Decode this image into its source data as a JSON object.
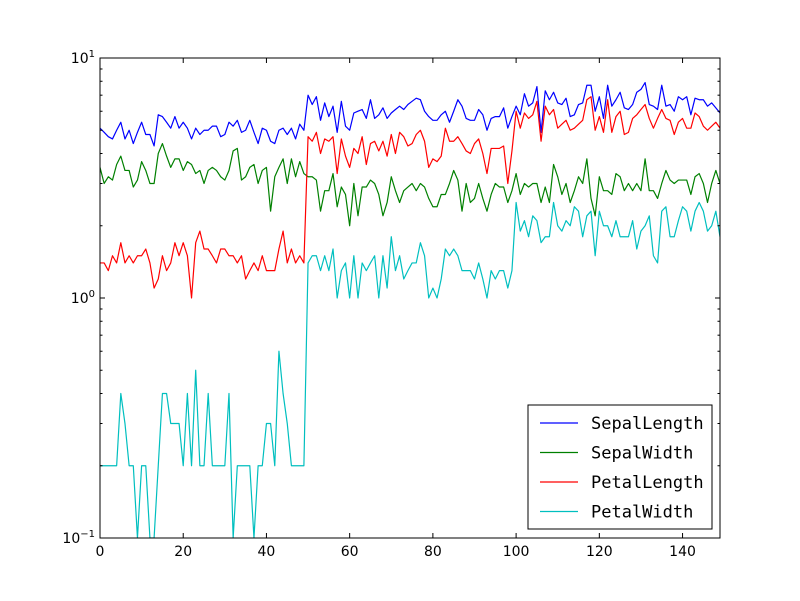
{
  "chart_data": {
    "type": "line",
    "xlim": [
      0,
      149
    ],
    "ylim": [
      0.1,
      10
    ],
    "yscale": "log",
    "grid": false,
    "legend_position": "lower-right",
    "x_ticks": [
      0,
      20,
      40,
      60,
      80,
      100,
      120,
      140
    ],
    "x_tick_labels": [
      "0",
      "20",
      "40",
      "60",
      "80",
      "100",
      "120",
      "140"
    ],
    "y_ticks": [
      0.1,
      1,
      10
    ],
    "y_tick_labels": [
      {
        "base": "10",
        "exp": "−1"
      },
      {
        "base": "10",
        "exp": "0"
      },
      {
        "base": "10",
        "exp": "1"
      }
    ],
    "series": [
      {
        "name": "SepalLength",
        "color": "#0000ff",
        "values": [
          5.1,
          4.9,
          4.7,
          4.6,
          5.0,
          5.4,
          4.6,
          5.0,
          4.4,
          4.9,
          5.4,
          4.8,
          4.8,
          4.3,
          5.8,
          5.7,
          5.4,
          5.1,
          5.7,
          5.1,
          5.4,
          5.1,
          4.6,
          5.1,
          4.8,
          5.0,
          5.0,
          5.2,
          5.2,
          4.7,
          4.8,
          5.4,
          5.2,
          5.5,
          4.9,
          5.0,
          5.5,
          4.9,
          4.4,
          5.1,
          5.0,
          4.5,
          4.4,
          5.0,
          5.1,
          4.8,
          5.1,
          4.6,
          5.3,
          5.0,
          7.0,
          6.4,
          6.9,
          5.5,
          6.5,
          5.7,
          6.3,
          4.9,
          6.6,
          5.2,
          5.0,
          5.9,
          6.0,
          6.1,
          5.6,
          6.7,
          5.6,
          5.8,
          6.2,
          5.6,
          5.9,
          6.1,
          6.3,
          6.1,
          6.4,
          6.6,
          6.8,
          6.7,
          6.0,
          5.7,
          5.5,
          5.5,
          5.8,
          6.0,
          5.4,
          6.0,
          6.7,
          6.3,
          5.6,
          5.5,
          5.5,
          6.1,
          5.8,
          5.0,
          5.6,
          5.7,
          5.7,
          6.2,
          5.1,
          5.7,
          6.3,
          5.8,
          7.1,
          6.3,
          6.5,
          7.6,
          4.9,
          7.3,
          6.7,
          7.2,
          6.5,
          6.4,
          6.8,
          5.7,
          5.8,
          6.4,
          6.5,
          7.7,
          7.7,
          6.0,
          6.9,
          5.6,
          7.7,
          6.3,
          6.7,
          7.2,
          6.2,
          6.1,
          6.4,
          7.2,
          7.4,
          7.9,
          6.4,
          6.3,
          6.1,
          7.7,
          6.3,
          6.4,
          6.0,
          6.9,
          6.7,
          6.9,
          5.8,
          6.8,
          6.7,
          6.7,
          6.3,
          6.5,
          6.2,
          5.9
        ]
      },
      {
        "name": "SepalWidth",
        "color": "#008000",
        "values": [
          3.5,
          3.0,
          3.2,
          3.1,
          3.6,
          3.9,
          3.4,
          3.4,
          2.9,
          3.1,
          3.7,
          3.4,
          3.0,
          3.0,
          4.0,
          4.4,
          3.9,
          3.5,
          3.8,
          3.8,
          3.4,
          3.7,
          3.6,
          3.3,
          3.4,
          3.0,
          3.4,
          3.5,
          3.4,
          3.2,
          3.1,
          3.4,
          4.1,
          4.2,
          3.1,
          3.2,
          3.5,
          3.6,
          3.0,
          3.4,
          3.5,
          2.3,
          3.2,
          3.5,
          3.8,
          3.0,
          3.8,
          3.2,
          3.7,
          3.3,
          3.2,
          3.2,
          3.1,
          2.3,
          2.8,
          2.8,
          3.3,
          2.4,
          2.9,
          2.7,
          2.0,
          3.0,
          2.2,
          2.9,
          2.9,
          3.1,
          3.0,
          2.7,
          2.2,
          2.5,
          3.2,
          2.8,
          2.5,
          2.8,
          2.9,
          3.0,
          2.8,
          3.0,
          2.9,
          2.6,
          2.4,
          2.4,
          2.7,
          2.7,
          3.0,
          3.4,
          3.1,
          2.3,
          3.0,
          2.5,
          2.6,
          3.0,
          2.6,
          2.3,
          2.7,
          3.0,
          2.9,
          2.9,
          2.5,
          2.8,
          3.3,
          2.7,
          3.0,
          2.9,
          3.0,
          3.0,
          2.5,
          2.9,
          2.5,
          3.6,
          3.2,
          2.7,
          3.0,
          2.5,
          2.8,
          3.2,
          3.0,
          3.8,
          2.6,
          2.2,
          3.2,
          2.8,
          2.8,
          2.7,
          3.3,
          3.2,
          2.8,
          3.0,
          2.8,
          3.0,
          2.8,
          3.8,
          2.8,
          2.8,
          2.6,
          3.0,
          3.4,
          3.1,
          3.0,
          3.1,
          3.1,
          3.1,
          2.7,
          3.2,
          3.3,
          3.0,
          2.5,
          3.0,
          3.4,
          3.0
        ]
      },
      {
        "name": "PetalLength",
        "color": "#ff0000",
        "values": [
          1.4,
          1.4,
          1.3,
          1.5,
          1.4,
          1.7,
          1.4,
          1.5,
          1.4,
          1.5,
          1.5,
          1.6,
          1.4,
          1.1,
          1.2,
          1.5,
          1.3,
          1.4,
          1.7,
          1.5,
          1.7,
          1.5,
          1.0,
          1.7,
          1.9,
          1.6,
          1.6,
          1.5,
          1.4,
          1.6,
          1.6,
          1.5,
          1.5,
          1.4,
          1.5,
          1.2,
          1.3,
          1.4,
          1.3,
          1.5,
          1.3,
          1.3,
          1.3,
          1.6,
          1.9,
          1.4,
          1.6,
          1.4,
          1.5,
          1.4,
          4.7,
          4.5,
          4.9,
          4.0,
          4.6,
          4.5,
          4.7,
          3.3,
          4.6,
          3.9,
          3.5,
          4.2,
          4.0,
          4.7,
          3.6,
          4.4,
          4.5,
          4.1,
          4.5,
          3.9,
          4.8,
          4.0,
          4.9,
          4.7,
          4.3,
          4.4,
          4.8,
          5.0,
          4.5,
          3.5,
          3.8,
          3.7,
          3.9,
          5.1,
          4.5,
          4.5,
          4.7,
          4.4,
          4.1,
          4.0,
          4.4,
          4.6,
          4.0,
          3.3,
          4.2,
          4.2,
          4.2,
          4.3,
          3.0,
          4.1,
          6.0,
          5.1,
          5.9,
          5.6,
          5.8,
          6.6,
          4.5,
          6.3,
          5.8,
          6.1,
          5.1,
          5.3,
          5.5,
          5.0,
          5.1,
          5.3,
          5.5,
          6.7,
          6.9,
          5.0,
          5.7,
          4.9,
          6.7,
          4.9,
          5.7,
          6.0,
          4.8,
          4.9,
          5.6,
          5.8,
          6.1,
          6.4,
          5.6,
          5.1,
          5.6,
          6.1,
          5.6,
          5.5,
          4.8,
          5.4,
          5.6,
          5.1,
          5.1,
          5.9,
          5.7,
          5.2,
          5.0,
          5.2,
          5.4,
          5.1
        ]
      },
      {
        "name": "PetalWidth",
        "color": "#00bfbf",
        "values": [
          0.2,
          0.2,
          0.2,
          0.2,
          0.2,
          0.4,
          0.3,
          0.2,
          0.2,
          0.1,
          0.2,
          0.2,
          0.1,
          0.1,
          0.2,
          0.4,
          0.4,
          0.3,
          0.3,
          0.3,
          0.2,
          0.4,
          0.2,
          0.5,
          0.2,
          0.2,
          0.4,
          0.2,
          0.2,
          0.2,
          0.2,
          0.4,
          0.1,
          0.2,
          0.2,
          0.2,
          0.2,
          0.1,
          0.2,
          0.2,
          0.3,
          0.3,
          0.2,
          0.6,
          0.4,
          0.3,
          0.2,
          0.2,
          0.2,
          0.2,
          1.4,
          1.5,
          1.5,
          1.3,
          1.5,
          1.3,
          1.6,
          1.0,
          1.3,
          1.4,
          1.0,
          1.5,
          1.0,
          1.4,
          1.3,
          1.4,
          1.5,
          1.0,
          1.5,
          1.1,
          1.8,
          1.3,
          1.5,
          1.2,
          1.3,
          1.4,
          1.4,
          1.7,
          1.5,
          1.0,
          1.1,
          1.0,
          1.2,
          1.6,
          1.5,
          1.6,
          1.5,
          1.3,
          1.3,
          1.3,
          1.2,
          1.4,
          1.2,
          1.0,
          1.3,
          1.2,
          1.3,
          1.3,
          1.1,
          1.3,
          2.5,
          1.9,
          2.1,
          1.8,
          2.2,
          2.1,
          1.7,
          1.8,
          1.8,
          2.5,
          2.0,
          1.9,
          2.1,
          2.0,
          2.4,
          2.3,
          1.8,
          2.2,
          2.3,
          1.5,
          2.3,
          2.0,
          2.0,
          1.8,
          2.1,
          1.8,
          1.8,
          1.8,
          2.1,
          1.6,
          1.9,
          2.0,
          2.2,
          1.5,
          1.4,
          2.3,
          2.4,
          1.8,
          1.8,
          2.1,
          2.4,
          2.3,
          1.9,
          2.3,
          2.5,
          2.3,
          1.9,
          2.0,
          2.3,
          1.8
        ]
      }
    ]
  }
}
